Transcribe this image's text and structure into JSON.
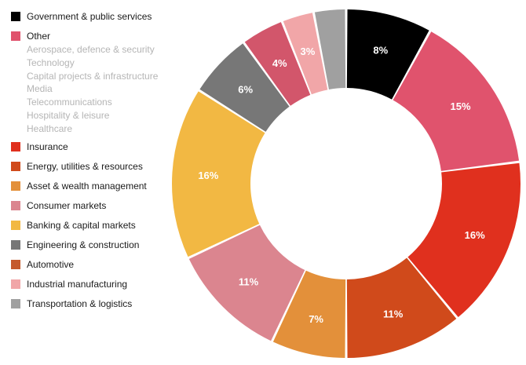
{
  "chart_data": {
    "type": "donut",
    "slices": [
      {
        "name": "Government & public services",
        "value": 8,
        "label": "8%",
        "color": "#000000"
      },
      {
        "name": "Other",
        "value": 15,
        "label": "15%",
        "color": "#e0536d",
        "subitems": [
          "Aerospace, defence & security",
          "Technology",
          "Capital projects & infrastructure",
          "Media",
          "Telecommunications",
          "Hospitality & leisure",
          "Healthcare"
        ]
      },
      {
        "name": "Insurance",
        "value": 16,
        "label": "16%",
        "color": "#e0301e"
      },
      {
        "name": "Energy, utilities & resources",
        "value": 11,
        "label": "11%",
        "color": "#d04a1b"
      },
      {
        "name": "Asset & wealth management",
        "value": 7,
        "label": "7%",
        "color": "#e3903a"
      },
      {
        "name": "Consumer markets",
        "value": 11,
        "label": "11%",
        "color": "#db858f"
      },
      {
        "name": "Banking & capital markets",
        "value": 16,
        "label": "16%",
        "color": "#f2b843"
      },
      {
        "name": "Engineering & construction",
        "value": 6,
        "label": "6%",
        "color": "#777777"
      },
      {
        "name": "Automotive",
        "value": 4,
        "label": "4%",
        "color": "#d2566b",
        "legend_color": "#c55a2d"
      },
      {
        "name": "Industrial manufacturing",
        "value": 3,
        "label": "3%",
        "color": "#f1a6a8"
      },
      {
        "name": "Transportation & logistics",
        "value": 3,
        "label": "",
        "color": "#a0a0a0"
      }
    ],
    "legend_order": [
      0,
      1,
      2,
      3,
      4,
      5,
      6,
      7,
      8,
      9,
      10
    ],
    "legend_position": "left"
  }
}
